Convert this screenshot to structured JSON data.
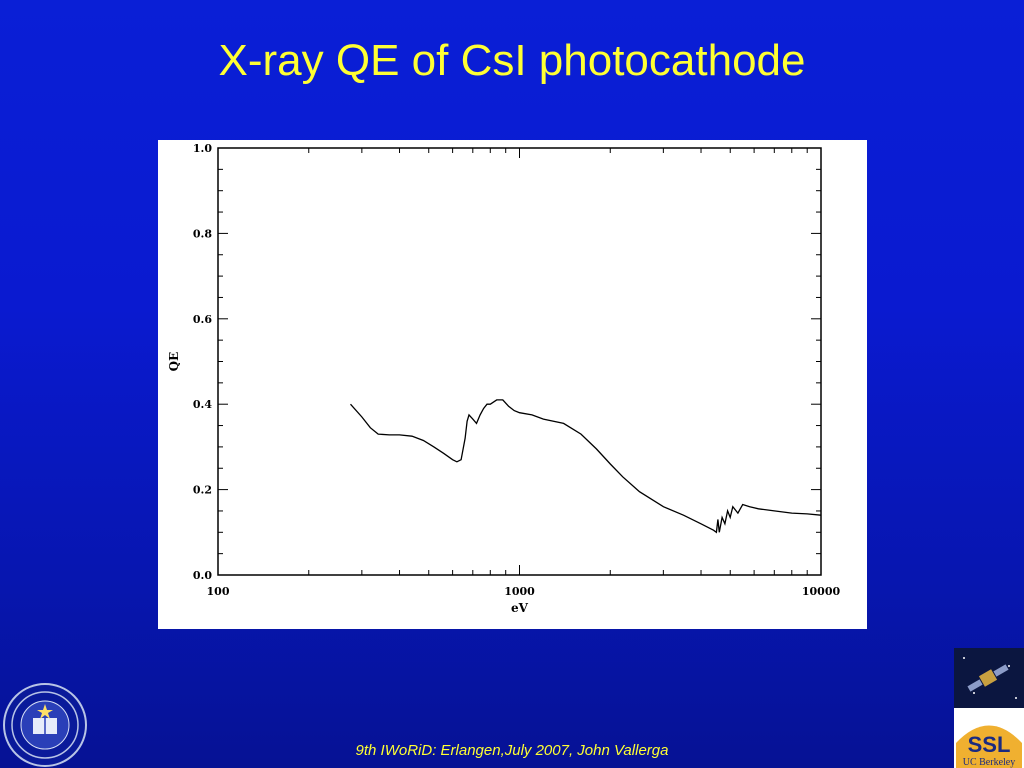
{
  "slide": {
    "title": "X-ray QE of CsI photocathode",
    "footer": "9th IWoRiD: Erlangen,July 2007, John Vallerga"
  },
  "logos": {
    "left_seal": "uc-seal-icon",
    "right_logo_text": "SSL",
    "right_logo_subtext": "UC Berkeley"
  },
  "colors": {
    "background": "#0a1fd6",
    "title": "#ffff33",
    "footer": "#ffff33"
  },
  "chart_data": {
    "type": "line",
    "xlabel": "eV",
    "ylabel": "QE",
    "xscale": "log",
    "xlim": [
      100,
      10000
    ],
    "ylim": [
      0,
      1
    ],
    "x_tick_labels": [
      "100",
      "1000",
      "10000"
    ],
    "y_tick_labels": [
      "0.0",
      "0.2",
      "0.4",
      "0.6",
      "0.8",
      "1.0"
    ],
    "grid": false,
    "series": [
      {
        "x": [
          275,
          300,
          320,
          340,
          370,
          400,
          440,
          480,
          520,
          560,
          600,
          620,
          640,
          660,
          670,
          680,
          700,
          720,
          740,
          760,
          780,
          800,
          840,
          880,
          920,
          960,
          1000,
          1100,
          1200,
          1400,
          1600,
          1800,
          2000,
          2200,
          2500,
          3000,
          3500,
          4000,
          4400,
          4500,
          4550,
          4600,
          4700,
          4800,
          4900,
          5000,
          5100,
          5300,
          5500,
          5800,
          6200,
          7000,
          8000,
          9000,
          10000
        ],
        "y": [
          0.4,
          0.37,
          0.345,
          0.33,
          0.328,
          0.328,
          0.325,
          0.315,
          0.3,
          0.285,
          0.27,
          0.265,
          0.27,
          0.32,
          0.36,
          0.375,
          0.365,
          0.355,
          0.375,
          0.39,
          0.4,
          0.4,
          0.41,
          0.41,
          0.395,
          0.385,
          0.38,
          0.375,
          0.365,
          0.355,
          0.33,
          0.295,
          0.26,
          0.23,
          0.195,
          0.16,
          0.14,
          0.12,
          0.105,
          0.1,
          0.13,
          0.1,
          0.135,
          0.12,
          0.15,
          0.135,
          0.16,
          0.145,
          0.165,
          0.16,
          0.155,
          0.15,
          0.145,
          0.143,
          0.14
        ]
      }
    ]
  }
}
